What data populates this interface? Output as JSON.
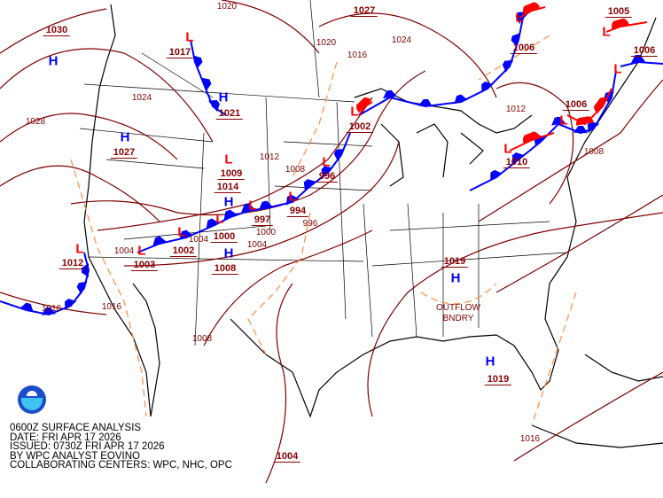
{
  "product": {
    "logo": "NOAA",
    "caption": [
      "0600Z SURFACE ANALYSIS",
      "DATE: FRI APR 17 2026",
      "ISSUED: 0730Z FRI APR 17 2026",
      "BY WPC ANALYST EOVINO",
      "COLLABORATING CENTERS: WPC, NHC, OPC"
    ]
  },
  "colors": {
    "isobar": "#800000",
    "cold_front": "#0000ff",
    "warm_front": "#ff0000",
    "trough": "#ff8c40",
    "high": "#0000ff",
    "low": "#ff0000",
    "land": "#000000"
  },
  "pressure_centers": [
    "1030",
    "1017",
    "1021",
    "1027",
    "1009",
    "1014",
    "997",
    "994",
    "996",
    "1002",
    "1000",
    "1008",
    "1002",
    "1003",
    "1012",
    "1019",
    "1019",
    "1010",
    "1006",
    "1005",
    "1006",
    "1006",
    "1027",
    "1004"
  ],
  "isobar_labels": [
    "1020",
    "1020",
    "1024",
    "1016",
    "1024",
    "1028",
    "1012",
    "1008",
    "996",
    "1000",
    "1004",
    "1004",
    "1004",
    "1016",
    "1016",
    "1008",
    "1012",
    "1008",
    "1016"
  ],
  "highs": [
    "H",
    "H",
    "H",
    "H",
    "H",
    "H",
    "H"
  ],
  "lows": [
    "L",
    "L",
    "L",
    "L",
    "L",
    "L",
    "L",
    "L",
    "L",
    "L",
    "L",
    "L",
    "L",
    "L",
    "L"
  ],
  "annotations": [
    "OUTFLOW",
    "BNDRY"
  ]
}
